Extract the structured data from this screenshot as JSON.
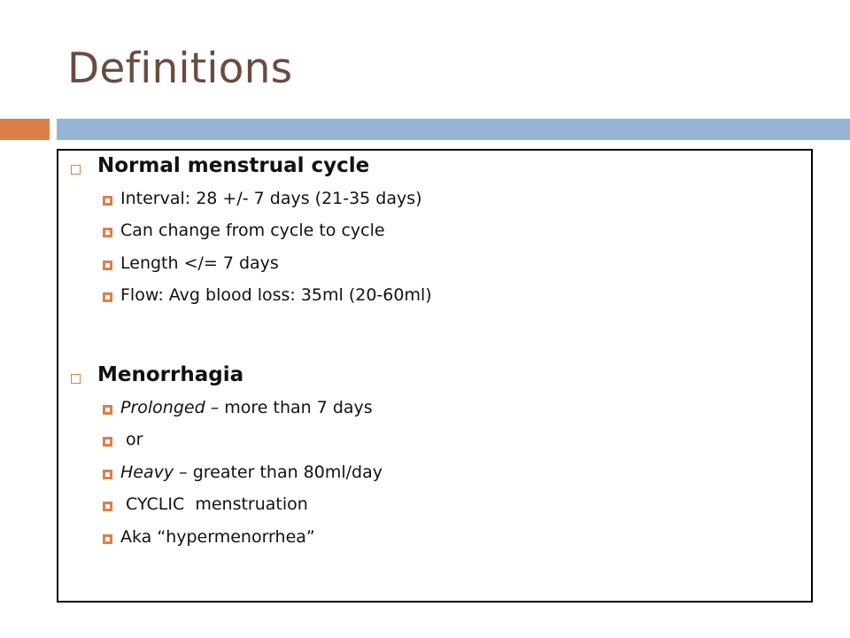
{
  "slide": {
    "title": "Definitions",
    "colors": {
      "title": "#6b4b3e",
      "accent_orange": "#dd8047",
      "accent_blue": "#94b6d2"
    },
    "sections": [
      {
        "heading": "Normal menstrual cycle",
        "bullet_icon": "hollow-square-icon",
        "items": [
          {
            "plain": "Interval: 28 +/- 7 days (21-35 days)"
          },
          {
            "plain": "Can change from cycle to cycle"
          },
          {
            "plain": "Length </= 7 days"
          },
          {
            "plain": "Flow: Avg blood loss: 35ml (20-60ml)"
          }
        ]
      },
      {
        "heading": "Menorrhagia",
        "bullet_icon": "hollow-square-icon",
        "items": [
          {
            "em": "Prolonged",
            "plain": " – more than 7 days"
          },
          {
            "plain": " or"
          },
          {
            "em": "Heavy",
            "plain": " – greater than 80ml/day"
          },
          {
            "plain": " CYCLIC  menstruation"
          },
          {
            "plain": "Aka “hypermenorrhea”"
          }
        ]
      }
    ],
    "sub_bullet_icon": "framed-square-icon"
  }
}
